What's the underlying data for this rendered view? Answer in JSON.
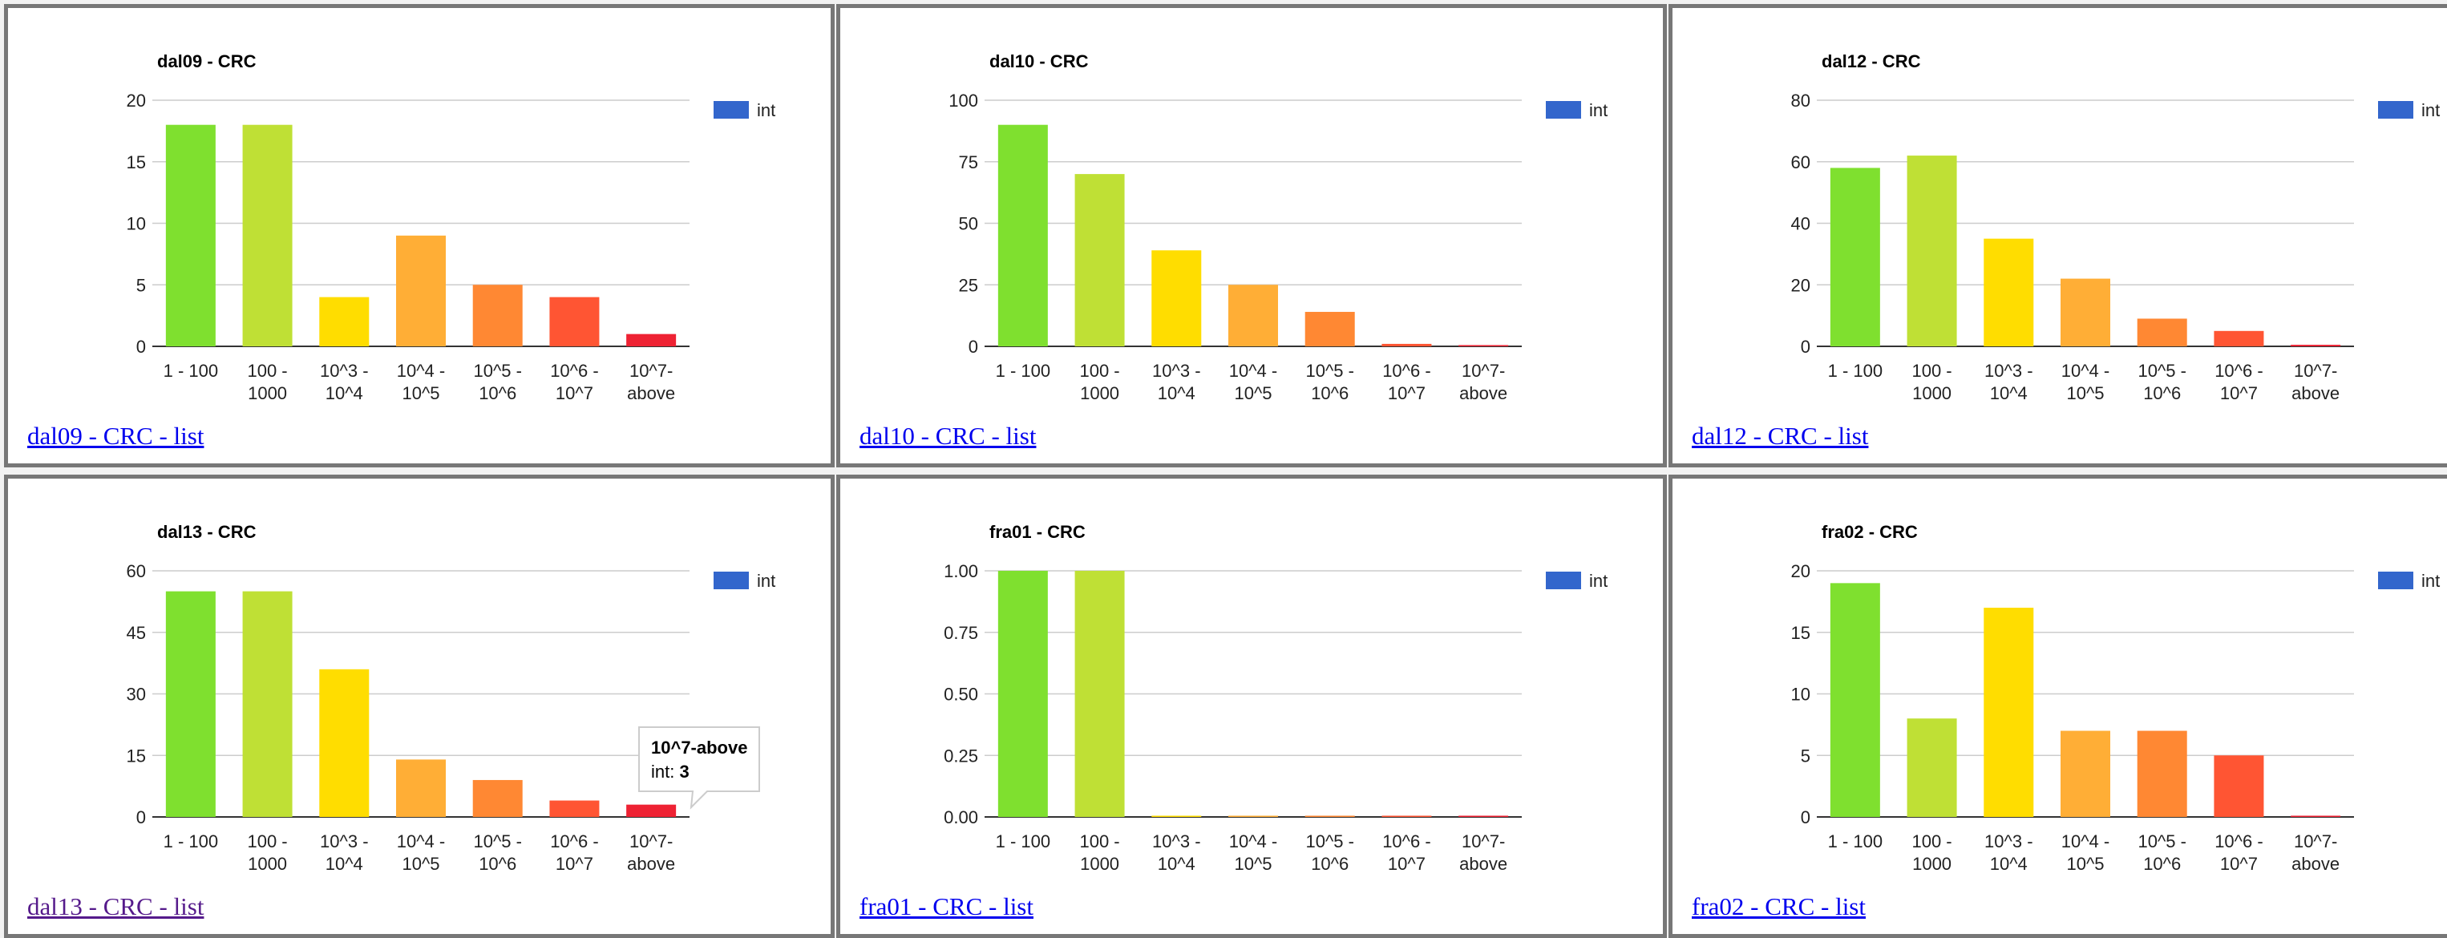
{
  "colors": {
    "legend": "#3366cc",
    "bars": [
      "#7fe02f",
      "#bfe035",
      "#ffdd00",
      "#ffae36",
      "#ff8833",
      "#ff5533",
      "#ee2233"
    ]
  },
  "legend_label": "int",
  "categories": [
    [
      "1 - 100"
    ],
    [
      "100 -",
      "1000"
    ],
    [
      "10^3 -",
      "10^4"
    ],
    [
      "10^4 -",
      "10^5"
    ],
    [
      "10^5 -",
      "10^6"
    ],
    [
      "10^6 -",
      "10^7"
    ],
    [
      "10^7-",
      "above"
    ]
  ],
  "chart_data": [
    {
      "type": "bar",
      "title": "dal09 - CRC",
      "link": "dal09 - CRC - list",
      "categories": [
        "1 - 100",
        "100 - 1000",
        "10^3 - 10^4",
        "10^4 - 10^5",
        "10^5 - 10^6",
        "10^6 - 10^7",
        "10^7-above"
      ],
      "series": [
        {
          "name": "int",
          "values": [
            18,
            18,
            4,
            9,
            5,
            4,
            1
          ]
        }
      ],
      "ylim": [
        0,
        20
      ],
      "yticks": [
        "0",
        "5",
        "10",
        "15",
        "20"
      ],
      "grid": true,
      "legend": "top-right"
    },
    {
      "type": "bar",
      "title": "dal10 - CRC",
      "link": "dal10 - CRC - list",
      "categories": [
        "1 - 100",
        "100 - 1000",
        "10^3 - 10^4",
        "10^4 - 10^5",
        "10^5 - 10^6",
        "10^6 - 10^7",
        "10^7-above"
      ],
      "series": [
        {
          "name": "int",
          "values": [
            90,
            70,
            39,
            25,
            14,
            1,
            0.5
          ]
        }
      ],
      "ylim": [
        0,
        100
      ],
      "yticks": [
        "0",
        "25",
        "50",
        "75",
        "100"
      ],
      "grid": true,
      "legend": "top-right"
    },
    {
      "type": "bar",
      "title": "dal12 - CRC",
      "link": "dal12 - CRC - list",
      "categories": [
        "1 - 100",
        "100 - 1000",
        "10^3 - 10^4",
        "10^4 - 10^5",
        "10^5 - 10^6",
        "10^6 - 10^7",
        "10^7-above"
      ],
      "series": [
        {
          "name": "int",
          "values": [
            58,
            62,
            35,
            22,
            9,
            5,
            0.5
          ]
        }
      ],
      "ylim": [
        0,
        80
      ],
      "yticks": [
        "0",
        "20",
        "40",
        "60",
        "80"
      ],
      "grid": true,
      "legend": "top-right"
    },
    {
      "type": "bar",
      "title": "dal13 - CRC",
      "link": "dal13 - CRC - list",
      "visited": true,
      "categories": [
        "1 - 100",
        "100 - 1000",
        "10^3 - 10^4",
        "10^4 - 10^5",
        "10^5 - 10^6",
        "10^6 - 10^7",
        "10^7-above"
      ],
      "series": [
        {
          "name": "int",
          "values": [
            55,
            55,
            36,
            14,
            9,
            4,
            3
          ]
        }
      ],
      "ylim": [
        0,
        60
      ],
      "yticks": [
        "0",
        "15",
        "30",
        "45",
        "60"
      ],
      "grid": true,
      "legend": "top-right",
      "tooltip": {
        "title": "10^7-above",
        "label": "int: ",
        "value": "3"
      }
    },
    {
      "type": "bar",
      "title": "fra01 - CRC",
      "link": "fra01 - CRC - list",
      "categories": [
        "1 - 100",
        "100 - 1000",
        "10^3 - 10^4",
        "10^4 - 10^5",
        "10^5 - 10^6",
        "10^6 - 10^7",
        "10^7-above"
      ],
      "series": [
        {
          "name": "int",
          "values": [
            1,
            1,
            0.005,
            0.005,
            0.005,
            0.005,
            0.005
          ]
        }
      ],
      "ylim": [
        0,
        1
      ],
      "yticks": [
        "0.00",
        "0.25",
        "0.50",
        "0.75",
        "1.00"
      ],
      "grid": true,
      "legend": "top-right"
    },
    {
      "type": "bar",
      "title": "fra02 - CRC",
      "link": "fra02 - CRC - list",
      "categories": [
        "1 - 100",
        "100 - 1000",
        "10^3 - 10^4",
        "10^4 - 10^5",
        "10^5 - 10^6",
        "10^6 - 10^7",
        "10^7-above"
      ],
      "series": [
        {
          "name": "int",
          "values": [
            19,
            8,
            17,
            7,
            7,
            5,
            0.1
          ]
        }
      ],
      "ylim": [
        0,
        20
      ],
      "yticks": [
        "0",
        "5",
        "10",
        "15",
        "20"
      ],
      "grid": true,
      "legend": "top-right"
    }
  ]
}
